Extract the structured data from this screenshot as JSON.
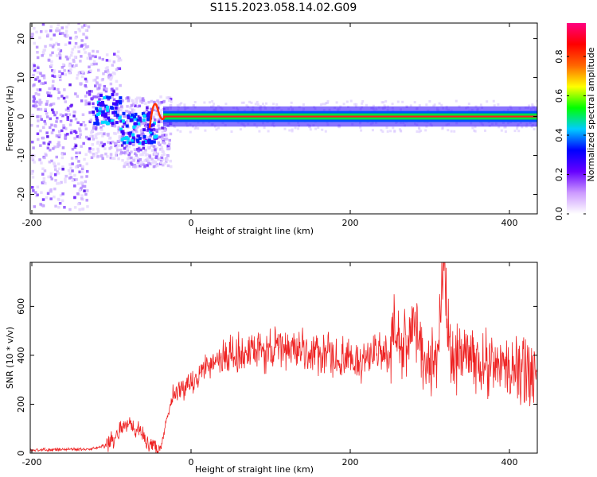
{
  "title": "S115.2023.058.14.02.G09",
  "colors": {
    "snr_line": "#ee2222",
    "ridge": "#ff1a1a"
  },
  "chart_data": [
    {
      "type": "heatmap",
      "xlabel": "Height of straight line (km)",
      "ylabel": "Frequency (Hz)",
      "xlim": [
        -202,
        435
      ],
      "ylim": [
        -25,
        24
      ],
      "xticks": [
        "-200",
        "0",
        "200",
        "400"
      ],
      "yticks": [
        "-20",
        "-10",
        "0",
        "10",
        "20"
      ],
      "colorbar": {
        "label": "Normalized spectral amplitude",
        "range": [
          0,
          0.97
        ],
        "ticks": [
          "0.0",
          "0.2",
          "0.4",
          "0.6",
          "0.8"
        ],
        "colormap": [
          "#ffffff",
          "#cc99ff",
          "#6600ff",
          "#0000ff",
          "#00ccff",
          "#00ff00",
          "#ffff00",
          "#ff6600",
          "#ff0000",
          "#ff0080"
        ]
      },
      "description_values": {
        "ridge_frequency_hz": 0,
        "ridge_start_km": -35,
        "ridge_end_km": 435,
        "noisy_region_km": [
          -202,
          -40
        ]
      }
    },
    {
      "type": "line",
      "xlabel": "Height of straight line (km)",
      "ylabel": "SNR (10 * v/v)",
      "xlim": [
        -202,
        435
      ],
      "ylim": [
        0,
        780
      ],
      "xticks": [
        "-200",
        "0",
        "200",
        "400"
      ],
      "yticks": [
        "0",
        "200",
        "400",
        "600"
      ],
      "series": [
        {
          "x": [
            -202,
            -180,
            -160,
            -140,
            -120,
            -105,
            -95,
            -85,
            -75,
            -65,
            -55,
            -45,
            -38,
            -32,
            -28,
            -25,
            -20,
            -15,
            -10,
            -5,
            0,
            10,
            20,
            30,
            40,
            60,
            80,
            100,
            120,
            140,
            160,
            180,
            200,
            220,
            240,
            250,
            255,
            260,
            270,
            280,
            290,
            300,
            310,
            318,
            325,
            340,
            360,
            380,
            400,
            420,
            435
          ],
          "values": [
            12,
            14,
            15,
            16,
            18,
            40,
            70,
            110,
            120,
            90,
            40,
            25,
            20,
            120,
            170,
            200,
            230,
            250,
            270,
            260,
            280,
            320,
            360,
            380,
            390,
            400,
            410,
            420,
            430,
            420,
            400,
            390,
            370,
            390,
            410,
            380,
            560,
            440,
            420,
            560,
            400,
            360,
            430,
            780,
            400,
            400,
            380,
            360,
            340,
            330,
            360
          ]
        }
      ]
    }
  ]
}
